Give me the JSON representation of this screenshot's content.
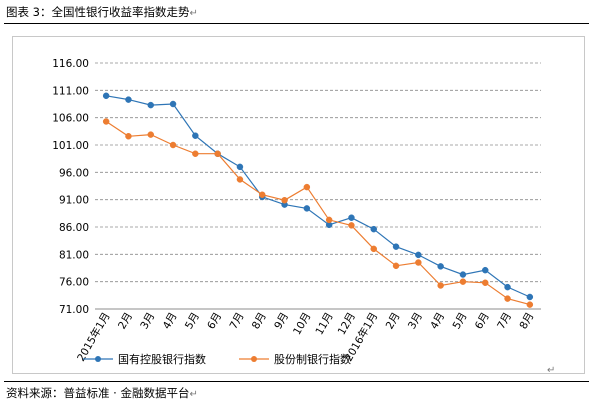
{
  "caption": {
    "label": "图表 3：",
    "title": "全国性银行收益率指数走势",
    "para_mark": "↵"
  },
  "source": {
    "text": "资料来源：普益标准 · 金融数据平台",
    "para_mark": "↵"
  },
  "end_mark": "↵",
  "chart_data": {
    "type": "line",
    "title": "",
    "xlabel": "",
    "ylabel": "",
    "categories": [
      "2015年1月",
      "2月",
      "3月",
      "4月",
      "5月",
      "6月",
      "7月",
      "8月",
      "9月",
      "10月",
      "11月",
      "12月",
      "2016年1月",
      "2月",
      "3月",
      "4月",
      "5月",
      "6月",
      "7月",
      "8月"
    ],
    "ylim": [
      71,
      116
    ],
    "yticks": [
      "71.00",
      "76.00",
      "81.00",
      "86.00",
      "91.00",
      "96.00",
      "101.00",
      "106.00",
      "111.00",
      "116.00"
    ],
    "grid": "horizontal dashed",
    "legend_position": "bottom",
    "series": [
      {
        "name": "国有控股银行指数",
        "color": "#2e75b6",
        "values": [
          110.0,
          109.3,
          108.3,
          108.5,
          102.7,
          99.4,
          97.0,
          91.5,
          90.1,
          89.4,
          86.4,
          87.7,
          85.6,
          82.4,
          80.9,
          78.8,
          77.3,
          78.1,
          75.0,
          73.2
        ]
      },
      {
        "name": "股份制银行指数",
        "color": "#ed7d31",
        "values": [
          105.3,
          102.6,
          102.9,
          101.0,
          99.4,
          99.4,
          94.7,
          91.9,
          90.9,
          93.3,
          87.3,
          86.3,
          82.0,
          78.9,
          79.5,
          75.3,
          76.0,
          75.8,
          72.9,
          71.8
        ]
      }
    ]
  }
}
